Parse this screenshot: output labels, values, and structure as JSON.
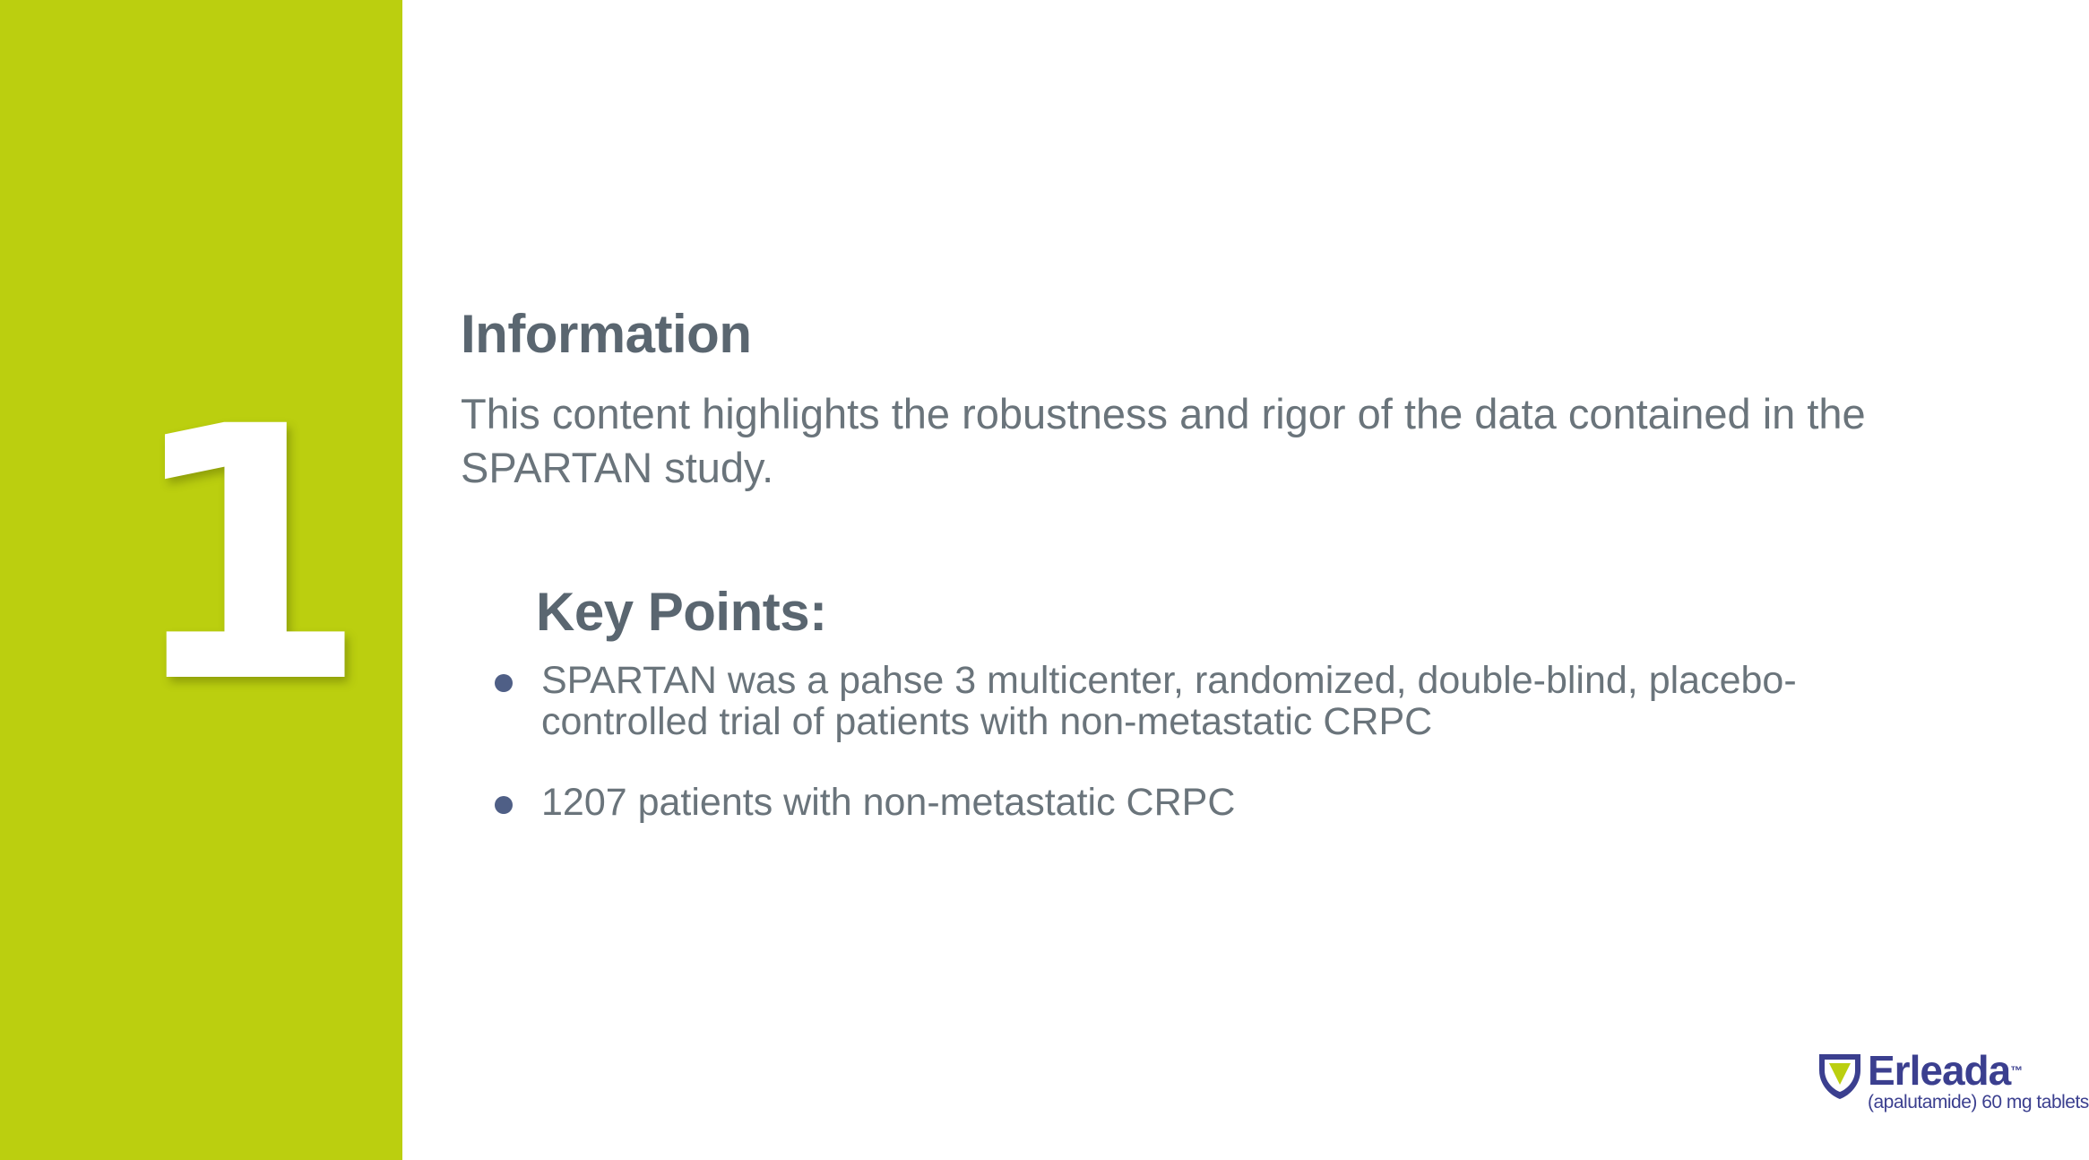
{
  "slide": {
    "number": "1",
    "information": {
      "heading": "Information",
      "text": "This content highlights the robustness and rigor of the data contained in the SPARTAN study."
    },
    "key_points": {
      "heading": "Key Points:",
      "items": [
        "SPARTAN was a pahse 3 multicenter, randomized, double-blind, placebo-controlled trial of patients with non-metastatic CRPC",
        "1207 patients with non-metastatic CRPC"
      ]
    },
    "brand": {
      "name": "Erleada",
      "trademark": "™",
      "subtitle": "(apalutamide) 60 mg tablets",
      "icon": "shield-logo-icon"
    }
  },
  "colors": {
    "side_panel": "#bbcf0f",
    "heading": "#5a6670",
    "body_text": "#6a747b",
    "bullet": "#4f5f86",
    "brand": "#3b3f8f"
  }
}
